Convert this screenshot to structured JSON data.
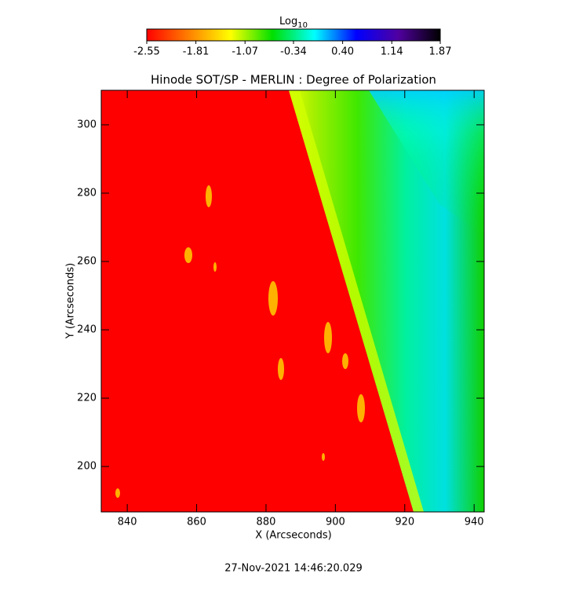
{
  "chart_data": {
    "type": "heatmap",
    "title": "Hinode SOT/SP - MERLIN : Degree of Polarization",
    "x_label": "X (Arcseconds)",
    "y_label": "Y (Arcseconds)",
    "footer": "27-Nov-2021 14:46:20.029",
    "xlim": [
      832.5,
      942.9
    ],
    "ylim": [
      186.7,
      310.1
    ],
    "xticks": [
      840,
      860,
      880,
      900,
      920,
      940
    ],
    "yticks": [
      200,
      220,
      240,
      260,
      280,
      300
    ],
    "colorbar": {
      "label": "Log",
      "label_subscript": "10",
      "lim": [
        -2.55,
        1.87
      ],
      "ticks": [
        -2.55,
        -1.81,
        -1.07,
        -0.34,
        {
          "value": 0.4,
          "label": "0.40"
        },
        1.14,
        1.87
      ],
      "colors": [
        "#ff0000",
        "#ff8000",
        "#ffff00",
        "#00e000",
        "#00ffff",
        "#0000ff",
        "#5000a0",
        "#000000"
      ]
    }
  }
}
